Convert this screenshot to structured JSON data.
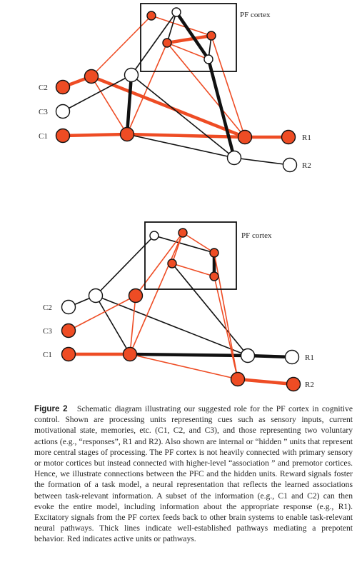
{
  "colors": {
    "active": "#ee4c24",
    "inactive": "#111111",
    "node_fill_inactive": "#ffffff"
  },
  "diagrams": [
    {
      "box_label": "PF cortex",
      "input_labels": {
        "C1": "C1",
        "C2": "C2",
        "C3": "C3"
      },
      "output_labels": {
        "R1": "R1",
        "R2": "R2"
      },
      "nodes": {
        "C2": "active",
        "C3": "inactive",
        "C1": "active",
        "H1": "active",
        "H2": "inactive",
        "H3": "active",
        "P1": "active",
        "P2": "inactive",
        "P3": "active",
        "P4": "active",
        "P5": "inactive",
        "O1": "active",
        "O2": "inactive",
        "R1": "active",
        "R2": "inactive"
      },
      "edges": [
        {
          "a": "C2",
          "b": "H1",
          "state": "active",
          "weight": "thick"
        },
        {
          "a": "C1",
          "b": "H3",
          "state": "active",
          "weight": "thick"
        },
        {
          "a": "H3",
          "b": "O1",
          "state": "active",
          "weight": "thick"
        },
        {
          "a": "O1",
          "b": "R1",
          "state": "active",
          "weight": "thick"
        },
        {
          "a": "H1",
          "b": "O1",
          "state": "active",
          "weight": "thick"
        },
        {
          "a": "H1",
          "b": "P1",
          "state": "active",
          "weight": "thin"
        },
        {
          "a": "H1",
          "b": "H3",
          "state": "active",
          "weight": "thin"
        },
        {
          "a": "P1",
          "b": "P4",
          "state": "active",
          "weight": "thin"
        },
        {
          "a": "P3",
          "b": "P4",
          "state": "active",
          "weight": "thick"
        },
        {
          "a": "P3",
          "b": "P5",
          "state": "active",
          "weight": "thin"
        },
        {
          "a": "P3",
          "b": "O1",
          "state": "active",
          "weight": "thin"
        },
        {
          "a": "H3",
          "b": "P3",
          "state": "active",
          "weight": "thin"
        },
        {
          "a": "P4",
          "b": "O1",
          "state": "active",
          "weight": "thin"
        },
        {
          "a": "H2",
          "b": "H3",
          "state": "inactive",
          "weight": "thick"
        },
        {
          "a": "H2",
          "b": "P2",
          "state": "inactive",
          "weight": "thin"
        },
        {
          "a": "P2",
          "b": "P5",
          "state": "inactive",
          "weight": "thick"
        },
        {
          "a": "P2",
          "b": "P3",
          "state": "inactive",
          "weight": "thin"
        },
        {
          "a": "P5",
          "b": "O2",
          "state": "inactive",
          "weight": "thick"
        },
        {
          "a": "P4",
          "b": "P5",
          "state": "inactive",
          "weight": "thin"
        },
        {
          "a": "C3",
          "b": "H2",
          "state": "inactive",
          "weight": "thin"
        },
        {
          "a": "H2",
          "b": "O2",
          "state": "inactive",
          "weight": "thin"
        },
        {
          "a": "H3",
          "b": "O2",
          "state": "inactive",
          "weight": "thin"
        },
        {
          "a": "O2",
          "b": "R2",
          "state": "inactive",
          "weight": "thin"
        }
      ]
    },
    {
      "box_label": "PF cortex",
      "input_labels": {
        "C2": "C2",
        "C3": "C3",
        "C1": "C1"
      },
      "output_labels": {
        "R1": "R1",
        "R2": "R2"
      },
      "nodes": {
        "C2": "inactive",
        "C3": "active",
        "C1": "active",
        "H1": "inactive",
        "H2": "active",
        "H3": "active",
        "P1": "inactive",
        "P2": "active",
        "P3": "active",
        "P4": "active",
        "P5": "active",
        "O1": "inactive",
        "O2": "active",
        "R1": "inactive",
        "R2": "active"
      },
      "edges": [
        {
          "a": "C2",
          "b": "H1",
          "state": "inactive",
          "weight": "thin"
        },
        {
          "a": "C1",
          "b": "H3",
          "state": "active",
          "weight": "thick"
        },
        {
          "a": "H3",
          "b": "O1",
          "state": "inactive",
          "weight": "thick"
        },
        {
          "a": "O1",
          "b": "R1",
          "state": "inactive",
          "weight": "thick"
        },
        {
          "a": "H1",
          "b": "P1",
          "state": "inactive",
          "weight": "thin"
        },
        {
          "a": "H1",
          "b": "H3",
          "state": "inactive",
          "weight": "thin"
        },
        {
          "a": "H1",
          "b": "O1",
          "state": "inactive",
          "weight": "thin"
        },
        {
          "a": "P1",
          "b": "P4",
          "state": "inactive",
          "weight": "thin"
        },
        {
          "a": "P4",
          "b": "P5",
          "state": "inactive",
          "weight": "thick"
        },
        {
          "a": "P3",
          "b": "O1",
          "state": "inactive",
          "weight": "thin"
        },
        {
          "a": "C3",
          "b": "H2",
          "state": "active",
          "weight": "thin"
        },
        {
          "a": "H2",
          "b": "H3",
          "state": "active",
          "weight": "thin"
        },
        {
          "a": "H2",
          "b": "P2",
          "state": "active",
          "weight": "thin"
        },
        {
          "a": "H3",
          "b": "P2",
          "state": "active",
          "weight": "thin"
        },
        {
          "a": "P2",
          "b": "P3",
          "state": "active",
          "weight": "thin"
        },
        {
          "a": "P2",
          "b": "P4",
          "state": "active",
          "weight": "thin"
        },
        {
          "a": "P3",
          "b": "P5",
          "state": "active",
          "weight": "thin"
        },
        {
          "a": "P5",
          "b": "O2",
          "state": "active",
          "weight": "thin"
        },
        {
          "a": "P4",
          "b": "O2",
          "state": "active",
          "weight": "thin"
        },
        {
          "a": "H3",
          "b": "O2",
          "state": "active",
          "weight": "thin"
        },
        {
          "a": "O2",
          "b": "R2",
          "state": "active",
          "weight": "thick"
        }
      ]
    }
  ],
  "caption": {
    "label": "Figure 2",
    "text": "Schematic diagram illustrating our suggested role for the PF cortex in cognitive control. Shown are processing units representing cues such as sensory inputs, current motivational state, memories, etc. (C1, C2, and C3), and those representing two voluntary actions (e.g., “responses”, R1 and R2). Also shown are internal or “hidden ” units that represent more central stages of processing. The PF cortex is not heavily connected with primary sensory or motor cortices but instead connected with higher-level “association ” and premotor cortices. Hence, we illustrate connections between the PFC and the hidden units. Reward signals foster the formation of a task model, a neural representation that reflects the learned associations between task-relevant information. A subset of the information (e.g., C1 and C2) can then evoke the entire model, including information about the appropriate response (e.g., R1). Excitatory signals from the PF cortex feeds back to other brain systems to enable task-relevant neural pathways. Thick lines indicate well-established pathways mediating a prepotent behavior. Red indicates active units or pathways."
  }
}
